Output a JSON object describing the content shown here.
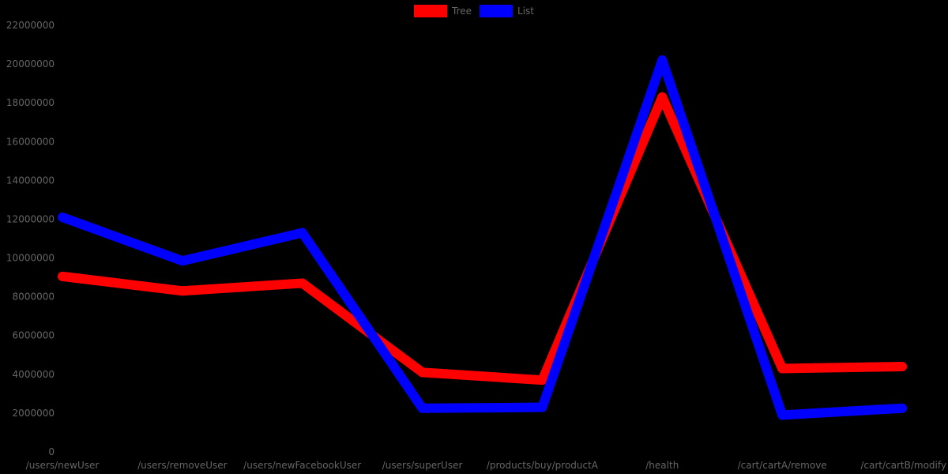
{
  "chart_data": {
    "type": "line",
    "title": "",
    "xlabel": "",
    "ylabel": "",
    "ylim": [
      0,
      22000000
    ],
    "yticks": [
      0,
      2000000,
      4000000,
      6000000,
      8000000,
      10000000,
      12000000,
      14000000,
      16000000,
      18000000,
      20000000,
      22000000
    ],
    "grid": false,
    "legend_position": "top-center",
    "categories": [
      "/users/newUser",
      "/users/removeUser",
      "/users/newFacebookUser",
      "/users/superUser",
      "/products/buy/productA",
      "/health",
      "/cart/cartA/remove",
      "/cart/cartB/modify"
    ],
    "series": [
      {
        "name": "Tree",
        "color": "#ff0000",
        "values": [
          9050000,
          8300000,
          8700000,
          4100000,
          3700000,
          18300000,
          4300000,
          4400000
        ]
      },
      {
        "name": "List",
        "color": "#0000ff",
        "values": [
          12100000,
          9850000,
          11300000,
          2250000,
          2300000,
          20200000,
          1900000,
          2250000
        ]
      }
    ]
  },
  "legend": {
    "items": [
      {
        "label": "Tree",
        "color": "#ff0000"
      },
      {
        "label": "List",
        "color": "#0000ff"
      }
    ]
  },
  "colors": {
    "background": "#000000",
    "text": "#666666"
  }
}
